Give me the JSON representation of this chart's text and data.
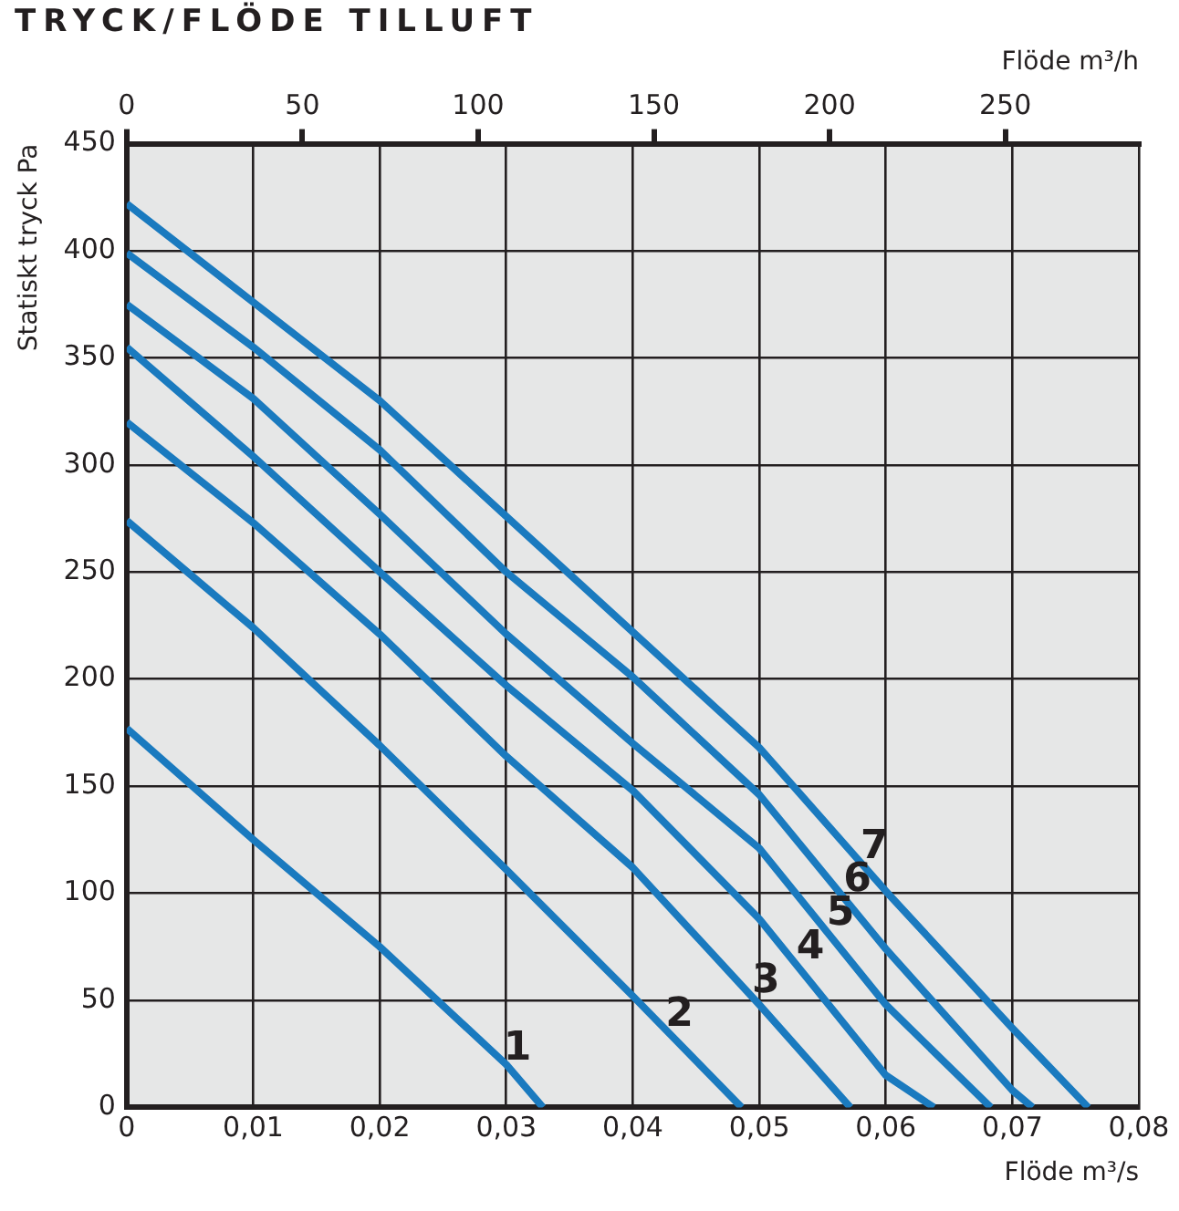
{
  "chart_data": {
    "type": "line",
    "title": "TRYCK/FLÖDE TILLUFT",
    "xlabel": "Flöde m³/s",
    "x2label": "Flöde m³/h",
    "ylabel": "Statiskt tryck Pa",
    "xlim": [
      0,
      0.08
    ],
    "xticks": [
      0,
      {
        "value": 0.01,
        "label": "0,01"
      },
      {
        "value": 0.02,
        "label": "0,02"
      },
      {
        "value": 0.03,
        "label": "0,03"
      },
      {
        "value": 0.04,
        "label": "0,04"
      },
      {
        "value": 0.05,
        "label": "0,05"
      },
      {
        "value": 0.06,
        "label": "0,06"
      },
      {
        "value": 0.07,
        "label": "0,07"
      },
      {
        "value": 0.08,
        "label": "0,08"
      }
    ],
    "x2lim": [
      0,
      288
    ],
    "x2ticks": [
      0,
      50,
      100,
      150,
      200,
      250
    ],
    "ylim": [
      0,
      450
    ],
    "yticks": [
      0,
      50,
      100,
      150,
      200,
      250,
      300,
      350,
      400,
      450
    ],
    "grid": true,
    "legend": false,
    "marker": "none",
    "line_style": "solid",
    "series": [
      {
        "name": "1",
        "color": "#1a7abf",
        "x": [
          0,
          0.01,
          0.02,
          0.03,
          0.0329
        ],
        "values": [
          177,
          125,
          75,
          20,
          0
        ]
      },
      {
        "name": "2",
        "color": "#1a7abf",
        "x": [
          0,
          0.01,
          0.02,
          0.03,
          0.04,
          0.0486
        ],
        "values": [
          274,
          224,
          169,
          111,
          52,
          0
        ]
      },
      {
        "name": "3",
        "color": "#1a7abf",
        "x": [
          0,
          0.01,
          0.02,
          0.03,
          0.04,
          0.05,
          0.0572
        ],
        "values": [
          320,
          273,
          221,
          164,
          112,
          48,
          0
        ]
      },
      {
        "name": "4",
        "color": "#1a7abf",
        "x": [
          0,
          0.01,
          0.02,
          0.03,
          0.04,
          0.05,
          0.06,
          0.0638
        ],
        "values": [
          355,
          304,
          250,
          197,
          148,
          88,
          15,
          0
        ]
      },
      {
        "name": "5",
        "color": "#1a7abf",
        "x": [
          0,
          0.01,
          0.02,
          0.03,
          0.04,
          0.05,
          0.06,
          0.0683
        ],
        "values": [
          375,
          331,
          277,
          221,
          170,
          121,
          48,
          0
        ]
      },
      {
        "name": "6",
        "color": "#1a7abf",
        "x": [
          0,
          0.01,
          0.02,
          0.03,
          0.04,
          0.05,
          0.06,
          0.07,
          0.0716
        ],
        "values": [
          399,
          355,
          307,
          250,
          201,
          146,
          74,
          8,
          0
        ]
      },
      {
        "name": "7",
        "color": "#1a7abf",
        "x": [
          0,
          0.01,
          0.02,
          0.03,
          0.04,
          0.05,
          0.06,
          0.07,
          0.076
        ],
        "values": [
          422,
          376,
          330,
          276,
          222,
          168,
          101,
          37,
          0
        ]
      }
    ]
  }
}
